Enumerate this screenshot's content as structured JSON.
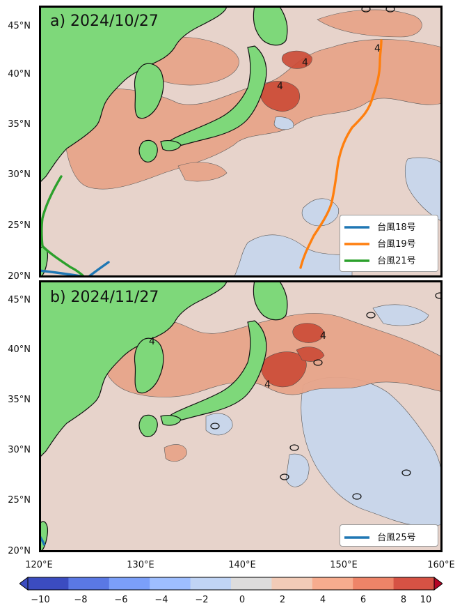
{
  "panels": [
    {
      "title": "a) 2024/10/27",
      "legend": [
        {
          "label": "台風18号",
          "color": "#1f77b4"
        },
        {
          "label": "台風19号",
          "color": "#ff7f0e"
        },
        {
          "label": "台風21号",
          "color": "#2ca02c"
        }
      ]
    },
    {
      "title": "b) 2024/11/27",
      "legend": [
        {
          "label": "台風25号",
          "color": "#1f77b4"
        }
      ]
    }
  ],
  "lat_ticks": [
    "45°N",
    "40°N",
    "35°N",
    "30°N",
    "25°N",
    "20°N"
  ],
  "lon_ticks": [
    "120°E",
    "130°E",
    "140°E",
    "150°E",
    "160°E"
  ],
  "colorbar": {
    "min": -10,
    "max": 10,
    "ticks": [
      "−10",
      "−8",
      "−6",
      "−4",
      "−2",
      "0",
      "2",
      "4",
      "6",
      "8",
      "10"
    ],
    "colors": [
      "#3b4cc0",
      "#5a78e4",
      "#7b9ff9",
      "#9ebeff",
      "#c0d4f5",
      "#dddcdc",
      "#f2cbb7",
      "#f7ac8e",
      "#ee8468",
      "#d65244",
      "#b40426"
    ]
  },
  "colors": {
    "land": "#7ed87a",
    "sea": "#e7d3cb",
    "warm": "#e8a58a",
    "hot": "#cc4a36",
    "cool": "#c9d6ea"
  }
}
